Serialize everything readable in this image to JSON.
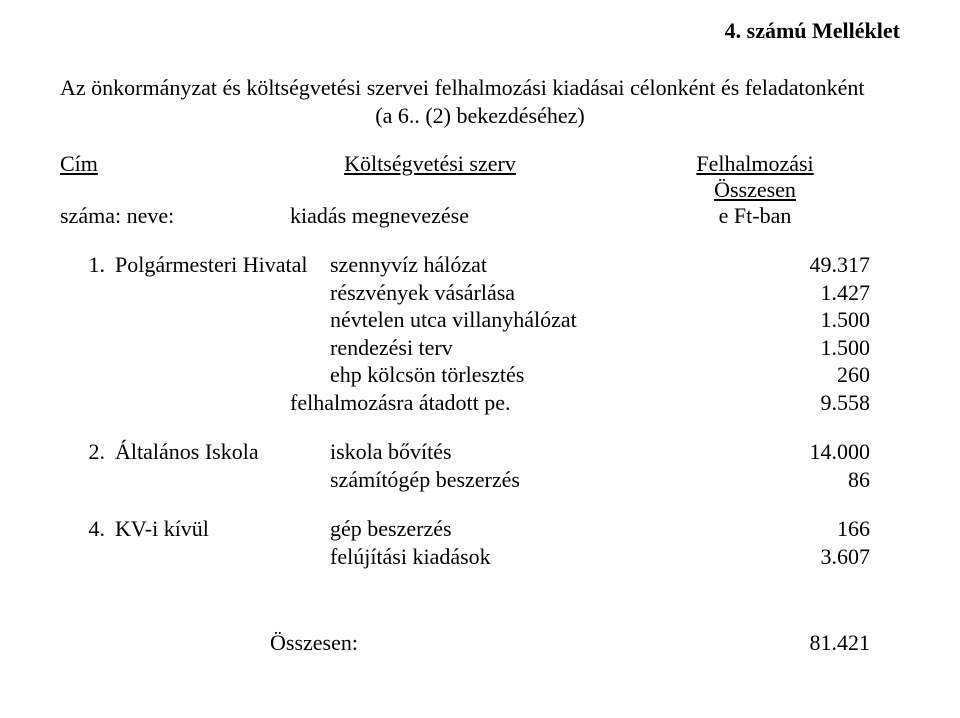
{
  "title": "4. számú Melléklet",
  "subtitle_line1": "Az önkormányzat és költségvetési szervei felhalmozási kiadásai célonként és feladatonként",
  "subtitle_line2": "(a 6.. (2) bekezdéséhez)",
  "header": {
    "cim": "Cím",
    "mid": "Költségvetési szerv",
    "right": "Felhalmozási",
    "row2_left": "száma: neve:",
    "row2_mid": "kiadás megnevezése",
    "row2_right_top": "Összesen",
    "row2_right": "e Ft-ban"
  },
  "rows": [
    {
      "num": "1.",
      "org": "Polgármesteri Hivatal",
      "desc": "szennyvíz hálózat",
      "val": "49.317"
    },
    {
      "num": "",
      "org": "",
      "desc": "részvények vásárlása",
      "val": "1.427"
    },
    {
      "num": "",
      "org": "",
      "desc": "névtelen utca villanyhálózat",
      "val": "1.500"
    },
    {
      "num": "",
      "org": "",
      "desc": "rendezési terv",
      "val": "1.500"
    },
    {
      "num": "",
      "org": "",
      "desc": "ehp kölcsön törlesztés",
      "val": "260"
    },
    {
      "num": "",
      "org": "",
      "desc": "felhalmozásra átadott pe.",
      "val": "9.558",
      "desc_offset": true
    },
    {
      "spacer": true
    },
    {
      "num": "2.",
      "org": "Általános Iskola",
      "desc": "iskola bővítés",
      "val": "14.000"
    },
    {
      "num": "",
      "org": "",
      "desc": "számítógép beszerzés",
      "val": "86"
    },
    {
      "spacer": true
    },
    {
      "num": "4.",
      "org": "KV-i kívül",
      "desc": "gép beszerzés",
      "val": "166"
    },
    {
      "num": "",
      "org": "",
      "desc": "felújítási kiadások",
      "val": "3.607"
    }
  ],
  "total": {
    "label": "Összesen:",
    "value": "81.421"
  },
  "style": {
    "font_family": "Times New Roman",
    "base_fontsize_pt": 16,
    "title_fontsize_pt": 16,
    "text_color": "#000000",
    "background_color": "#ffffff"
  }
}
